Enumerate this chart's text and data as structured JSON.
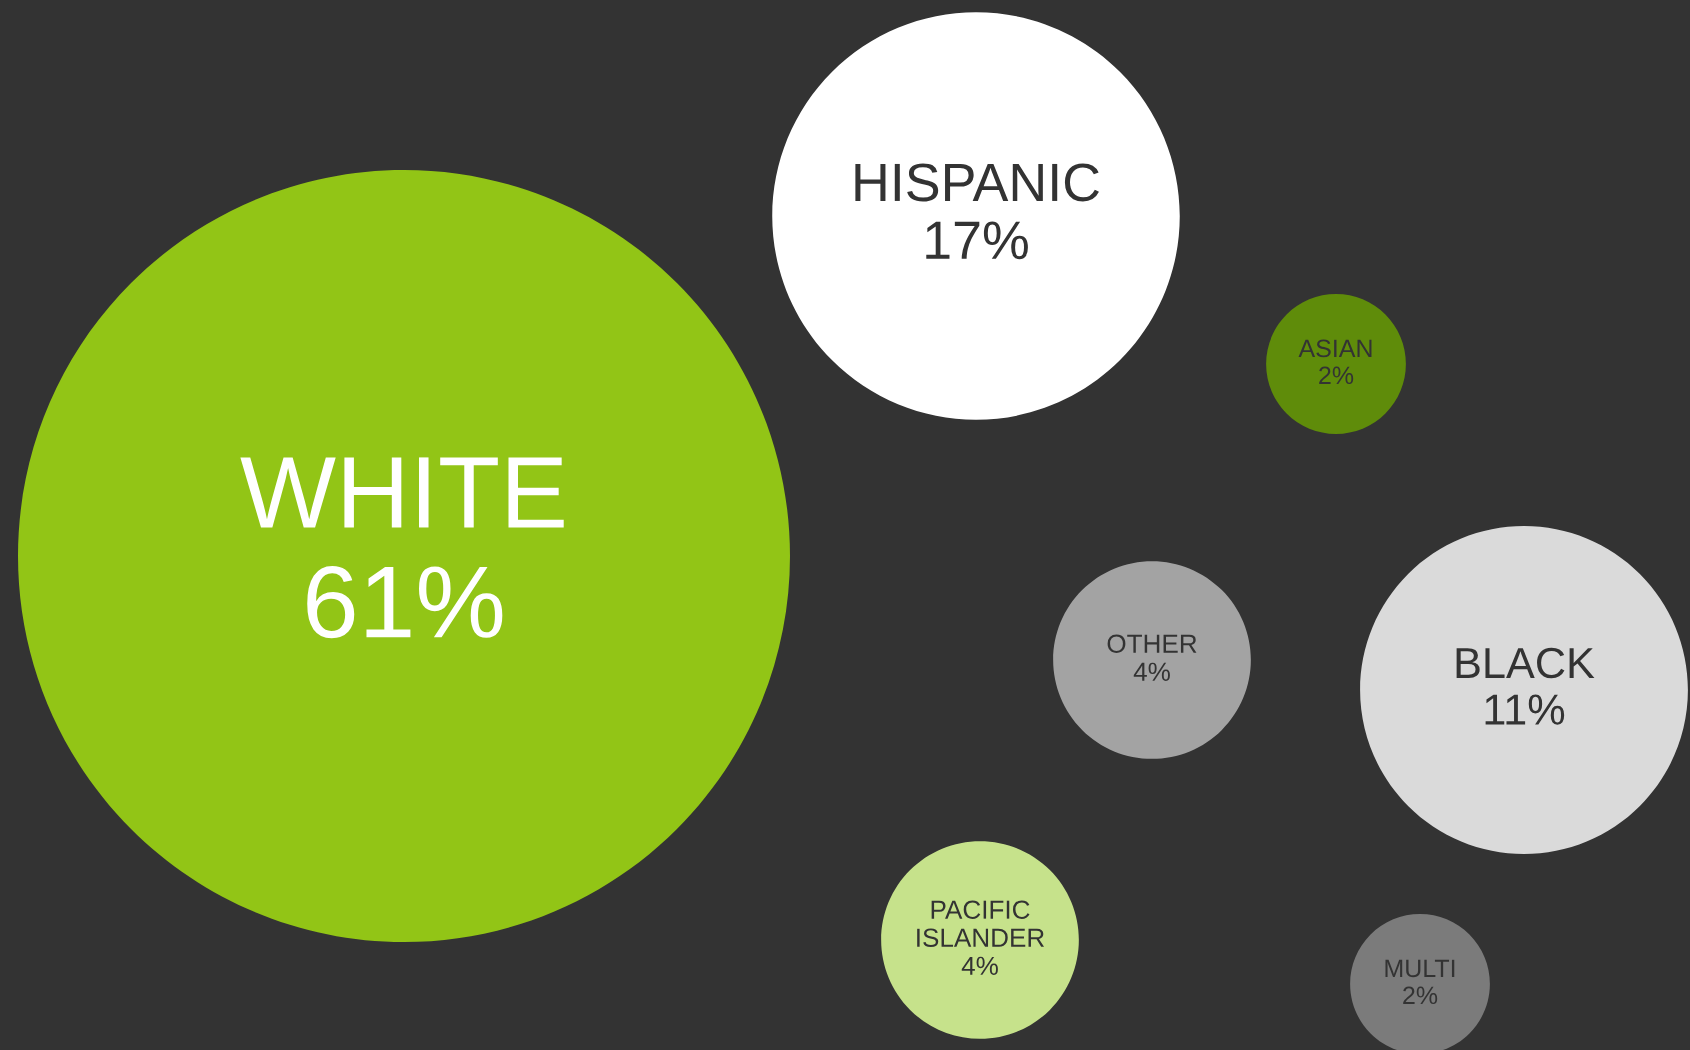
{
  "chart_data": {
    "type": "other",
    "categories": [
      "WHITE",
      "HISPANIC",
      "ASIAN",
      "OTHER",
      "BLACK",
      "PACIFIC\nISLANDER",
      "MULTI"
    ],
    "values": [
      61,
      17,
      2,
      4,
      11,
      4,
      2
    ],
    "value_labels": [
      "61%",
      "17%",
      "2%",
      "4%",
      "11%",
      "4%",
      "2%"
    ],
    "colors": [
      "#92c516",
      "#ffffff",
      "#5f8c0a",
      "#a3a3a3",
      "#dadada",
      "#c6e28b",
      "#7b7b7b"
    ]
  }
}
